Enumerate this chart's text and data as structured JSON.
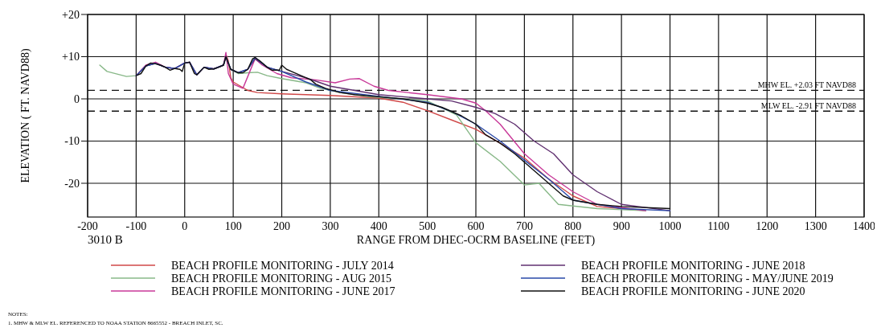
{
  "chart_data": {
    "type": "line",
    "xlabel": "RANGE FROM DHEC-OCRM BASELINE (FEET)",
    "ylabel": "ELEVATION ( FT. NAVD88)",
    "xlim": [
      -200,
      1400
    ],
    "xticks": [
      -200,
      -100,
      0,
      100,
      200,
      300,
      400,
      500,
      600,
      700,
      800,
      900,
      1000,
      1100,
      1200,
      1300,
      1400
    ],
    "ylim": [
      -28,
      20
    ],
    "yticks": [
      {
        "value": 20,
        "label": "+20"
      },
      {
        "value": 10,
        "label": "+10"
      },
      0,
      -10,
      -20
    ],
    "grid": true,
    "legend": "bottom",
    "series": [
      {
        "name": "BEACH PROFILE MONITORING - JULY 2014",
        "color": "#d04848",
        "x": [
          85,
          90,
          95,
          100,
          130,
          150,
          200,
          300,
          400,
          450,
          500,
          550,
          600,
          650,
          700,
          750,
          800,
          850,
          950
        ],
        "values": [
          10.5,
          9,
          5,
          4,
          2,
          1.5,
          1.2,
          0.8,
          0.2,
          -0.8,
          -2.8,
          -5,
          -7.2,
          -10.5,
          -14,
          -19,
          -23,
          -25.5,
          -26.5
        ]
      },
      {
        "name": "BEACH PROFILE MONITORING - AUG 2015",
        "color": "#88b888",
        "x": [
          -175,
          -160,
          -120,
          -100,
          -80,
          -60,
          -40,
          -20,
          0,
          10,
          25,
          40,
          60,
          80,
          85,
          95,
          110,
          130,
          150,
          170,
          200,
          250,
          280,
          320,
          380,
          450,
          500,
          560,
          600,
          650,
          700,
          730,
          770,
          850,
          950
        ],
        "values": [
          8,
          6.5,
          5.3,
          5.5,
          7.8,
          8.4,
          7.5,
          7.2,
          8.5,
          8.7,
          5.7,
          7.5,
          7.1,
          8,
          10,
          7,
          6,
          6.2,
          6.3,
          5.5,
          4.8,
          3.8,
          2.5,
          1.5,
          0.5,
          0,
          -0.5,
          -3.8,
          -10.4,
          -14.8,
          -20.4,
          -20,
          -25,
          -26,
          -26.5
        ]
      },
      {
        "name": "BEACH PROFILE MONITORING - JUNE 2017",
        "color": "#c83898",
        "x": [
          -100,
          -80,
          -60,
          -40,
          -20,
          0,
          10,
          25,
          40,
          60,
          80,
          85,
          90,
          100,
          120,
          145,
          160,
          190,
          220,
          270,
          310,
          340,
          360,
          390,
          420,
          500,
          570,
          600,
          620,
          650,
          700,
          750,
          800,
          850,
          950
        ],
        "values": [
          5.5,
          8,
          8.7,
          7.5,
          7.2,
          8.5,
          8.7,
          5.7,
          7.5,
          7.1,
          8,
          11,
          6,
          3.5,
          2.5,
          9.5,
          8,
          6,
          5,
          4.5,
          3.8,
          4.7,
          4.8,
          3,
          2,
          1,
          0,
          -1,
          -2.8,
          -6,
          -13,
          -18,
          -22,
          -25,
          -26.5
        ]
      },
      {
        "name": "BEACH PROFILE MONITORING - JUNE 2018",
        "color": "#603070",
        "x": [
          -100,
          -80,
          -60,
          -40,
          -20,
          0,
          10,
          25,
          40,
          60,
          80,
          85,
          95,
          110,
          130,
          145,
          170,
          200,
          250,
          300,
          400,
          500,
          550,
          600,
          640,
          680,
          720,
          760,
          800,
          850,
          900,
          1000
        ],
        "values": [
          5.5,
          7.8,
          8.4,
          7.5,
          7.2,
          8.5,
          8.7,
          5.7,
          7.5,
          7.1,
          8,
          10,
          7,
          6.2,
          7,
          9.5,
          7.5,
          6.5,
          5,
          3,
          1,
          0,
          -0.5,
          -2,
          -3.5,
          -6,
          -10,
          -13,
          -18,
          -22,
          -25,
          -26.5
        ]
      },
      {
        "name": "BEACH PROFILE MONITORING - MAY/JUNE 2019",
        "color": "#2848a8",
        "x": [
          -100,
          -80,
          -60,
          -40,
          -20,
          0,
          10,
          25,
          40,
          60,
          80,
          85,
          95,
          110,
          130,
          145,
          170,
          200,
          250,
          300,
          400,
          500,
          550,
          600,
          650,
          700,
          750,
          800,
          900,
          1000
        ],
        "values": [
          5.5,
          7.8,
          8.4,
          7.5,
          7.2,
          8.5,
          8.7,
          5.7,
          7.5,
          7.1,
          8,
          10,
          7,
          6.2,
          7,
          9.8,
          7.5,
          6.5,
          4,
          2,
          0.6,
          -0.8,
          -3,
          -6,
          -10,
          -14.5,
          -19,
          -24,
          -26,
          -26.5
        ]
      },
      {
        "name": "BEACH PROFILE MONITORING - JUNE 2020",
        "color": "#101010",
        "x": [
          -100,
          -90,
          -80,
          -70,
          -60,
          -50,
          -40,
          -30,
          -20,
          -10,
          -5,
          0,
          10,
          20,
          25,
          30,
          40,
          50,
          60,
          70,
          80,
          85,
          88,
          95,
          110,
          120,
          130,
          140,
          145,
          155,
          170,
          180,
          195,
          200,
          210,
          220,
          240,
          260,
          270,
          290,
          320,
          350,
          400,
          450,
          500,
          530,
          570,
          600,
          620,
          650,
          680,
          700,
          720,
          740,
          760,
          780,
          800,
          850,
          900,
          1000
        ],
        "values": [
          5.5,
          6,
          7.8,
          8.5,
          8.3,
          8,
          7.5,
          6.8,
          7.2,
          7,
          6.5,
          8.5,
          8.7,
          6,
          5.7,
          6.3,
          7.5,
          7,
          7.1,
          7.5,
          8,
          10,
          9,
          7,
          6.2,
          6.2,
          7,
          9.5,
          9.8,
          9,
          7.5,
          6.8,
          6.8,
          8,
          7,
          6.5,
          5.5,
          4.5,
          3.5,
          2.5,
          1.5,
          1,
          0.5,
          0,
          -1,
          -2,
          -4,
          -6,
          -8.5,
          -10.5,
          -13,
          -15,
          -17,
          -19,
          -21,
          -23,
          -24,
          -25,
          -25.5,
          -26
        ]
      }
    ],
    "ref_lines": [
      {
        "axis": "y",
        "value": 2.03,
        "label": "MHW EL. +2.03 FT NAVD88",
        "line_style": "dashed"
      },
      {
        "axis": "y",
        "value": -2.91,
        "label": "MLW EL. -2.91 FT NAVD88",
        "line_style": "dashed"
      }
    ],
    "annotations": [
      "3010 B",
      "NOTES:",
      "1. MHW & MLW EL. REFERENCED TO NOAA STATION 8665552 - BREACH INLET, SC."
    ]
  }
}
